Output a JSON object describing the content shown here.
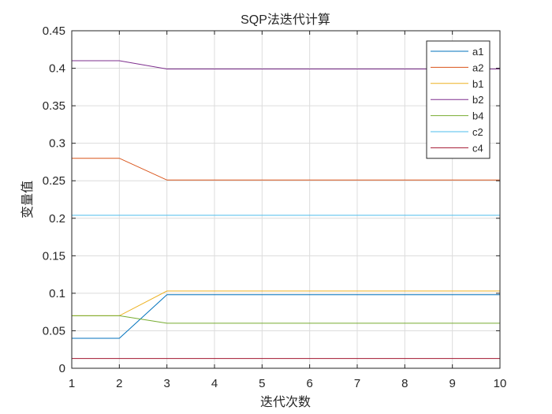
{
  "chart_data": {
    "type": "line",
    "title": "SQP法迭代计算",
    "xlabel": "迭代次数",
    "ylabel": "变量值",
    "x": [
      1,
      2,
      3,
      4,
      5,
      6,
      7,
      8,
      9,
      10
    ],
    "xlim": [
      1,
      10
    ],
    "ylim": [
      0,
      0.45
    ],
    "xticks": [
      1,
      2,
      3,
      4,
      5,
      6,
      7,
      8,
      9,
      10
    ],
    "yticks": [
      0,
      0.05,
      0.1,
      0.15,
      0.2,
      0.25,
      0.3,
      0.35,
      0.4,
      0.45
    ],
    "ytick_labels": [
      "0",
      "0.05",
      "0.1",
      "0.15",
      "0.2",
      "0.25",
      "0.3",
      "0.35",
      "0.4",
      "0.45"
    ],
    "grid": true,
    "legend_position": "top-right",
    "series": [
      {
        "name": "a1",
        "color": "#0072bd",
        "values": [
          0.04,
          0.04,
          0.098,
          0.098,
          0.098,
          0.098,
          0.098,
          0.098,
          0.098,
          0.098
        ]
      },
      {
        "name": "a2",
        "color": "#d95319",
        "values": [
          0.28,
          0.28,
          0.251,
          0.251,
          0.251,
          0.251,
          0.251,
          0.251,
          0.251,
          0.251
        ]
      },
      {
        "name": "b1",
        "color": "#edb120",
        "values": [
          0.07,
          0.07,
          0.103,
          0.103,
          0.103,
          0.103,
          0.103,
          0.103,
          0.103,
          0.103
        ]
      },
      {
        "name": "b2",
        "color": "#7e2f8e",
        "values": [
          0.41,
          0.41,
          0.399,
          0.399,
          0.399,
          0.399,
          0.399,
          0.399,
          0.399,
          0.399
        ]
      },
      {
        "name": "b4",
        "color": "#77ac30",
        "values": [
          0.07,
          0.07,
          0.06,
          0.06,
          0.06,
          0.06,
          0.06,
          0.06,
          0.06,
          0.06
        ]
      },
      {
        "name": "c2",
        "color": "#4dbeee",
        "values": [
          0.204,
          0.204,
          0.204,
          0.204,
          0.204,
          0.204,
          0.204,
          0.204,
          0.204,
          0.204
        ]
      },
      {
        "name": "c4",
        "color": "#a2142f",
        "values": [
          0.013,
          0.013,
          0.013,
          0.013,
          0.013,
          0.013,
          0.013,
          0.013,
          0.013,
          0.013
        ]
      }
    ]
  }
}
